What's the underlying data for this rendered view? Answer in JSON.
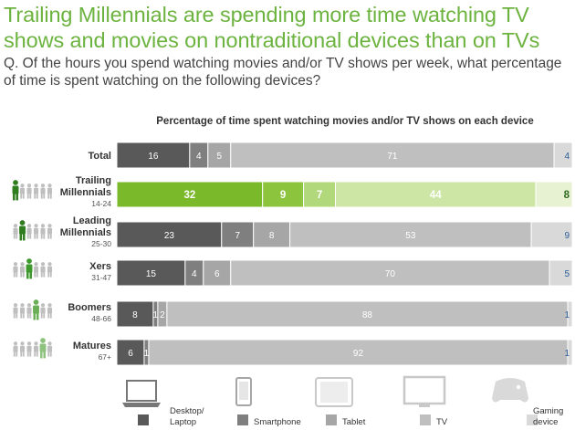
{
  "header": {
    "title": "Trailing Millennials are spending more time watching TV shows and movies on nontraditional devices than on TVs",
    "question": "Q. Of the hours you spend watching movies and/or TV shows per week, what percentage of time is spent watching on the following devices?"
  },
  "chart_data": {
    "type": "bar",
    "stacked": true,
    "orientation": "horizontal",
    "title": "Percentage of time spent watching movies and/or TV shows on each device",
    "categories": [
      {
        "name": "Total",
        "sub": ""
      },
      {
        "name": "Trailing Millennials",
        "sub": "14-24"
      },
      {
        "name": "Leading Millennials",
        "sub": "25-30"
      },
      {
        "name": "Xers",
        "sub": "31-47"
      },
      {
        "name": "Boomers",
        "sub": "48-66"
      },
      {
        "name": "Matures",
        "sub": "67+"
      }
    ],
    "series": [
      {
        "name": "Desktop/ Laptop",
        "values": [
          16,
          32,
          23,
          15,
          8,
          6
        ]
      },
      {
        "name": "Smartphone",
        "values": [
          4,
          9,
          7,
          4,
          1,
          1
        ]
      },
      {
        "name": "Tablet",
        "values": [
          5,
          7,
          8,
          6,
          2,
          0
        ]
      },
      {
        "name": "TV",
        "values": [
          71,
          44,
          53,
          70,
          88,
          92
        ]
      },
      {
        "name": "Gaming device",
        "values": [
          4,
          8,
          9,
          5,
          1,
          1
        ]
      }
    ],
    "value_labels": [
      [
        "16",
        "4",
        "5",
        "71",
        "4"
      ],
      [
        "32",
        "9",
        "7",
        "44",
        "8"
      ],
      [
        "23",
        "7",
        "8",
        "53",
        "9"
      ],
      [
        "15",
        "4",
        "6",
        "70",
        "5"
      ],
      [
        "8",
        "1",
        "2",
        "88",
        "1"
      ],
      [
        "6",
        "1",
        "",
        "92",
        "1"
      ]
    ],
    "colors": {
      "default": [
        "#595959",
        "#7f7f7f",
        "#a6a6a6",
        "#bfbfbf",
        "#d9d9d9"
      ],
      "highlight": [
        "#7ab929",
        "#8cc43e",
        "#b1d87a",
        "#cde6a6",
        "#e7f2d3"
      ],
      "highlight_row": 1,
      "people_dark": "#7f7f7f",
      "people_light": "#bfbfbf",
      "people_green": "#2f7d1f"
    },
    "legend_position": "bottom",
    "grid": false
  },
  "legend": {
    "items": [
      {
        "label": "Desktop/ Laptop",
        "icon": "laptop-icon",
        "color": "#595959"
      },
      {
        "label": "Smartphone",
        "icon": "smartphone-icon",
        "color": "#7f7f7f"
      },
      {
        "label": "Tablet",
        "icon": "tablet-icon",
        "color": "#a6a6a6"
      },
      {
        "label": "TV",
        "icon": "tv-icon",
        "color": "#bfbfbf"
      },
      {
        "label": "Gaming device",
        "icon": "game-controller-icon",
        "color": "#d9d9d9"
      }
    ]
  }
}
